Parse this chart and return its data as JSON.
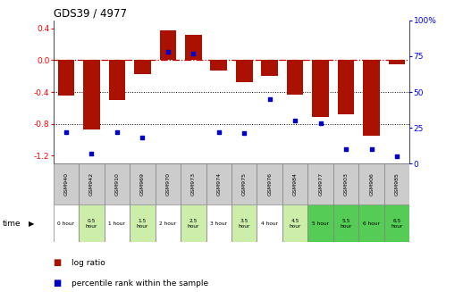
{
  "title": "GDS39 / 4977",
  "samples": [
    "GSM940",
    "GSM942",
    "GSM910",
    "GSM969",
    "GSM970",
    "GSM973",
    "GSM974",
    "GSM975",
    "GSM976",
    "GSM984",
    "GSM977",
    "GSM903",
    "GSM906",
    "GSM985"
  ],
  "time_labels": [
    "0 hour",
    "0.5\nhour",
    "1 hour",
    "1.5\nhour",
    "2 hour",
    "2.5\nhour",
    "3 hour",
    "3.5\nhour",
    "4 hour",
    "4.5\nhour",
    "5 hour",
    "5.5\nhour",
    "6 hour",
    "6.5\nhour"
  ],
  "log_ratio": [
    -0.45,
    -0.87,
    -0.5,
    -0.17,
    0.38,
    0.32,
    -0.13,
    -0.28,
    -0.2,
    -0.43,
    -0.72,
    -0.68,
    -0.95,
    -0.05
  ],
  "percentile": [
    22,
    7,
    22,
    18,
    78,
    77,
    22,
    21,
    45,
    30,
    28,
    10,
    10,
    5
  ],
  "time_bg": [
    "white",
    "light",
    "white",
    "light",
    "white",
    "light",
    "white",
    "light",
    "white",
    "light",
    "green",
    "green",
    "green",
    "green"
  ],
  "ylim_left": [
    -1.3,
    0.5
  ],
  "ylim_right": [
    0,
    100
  ],
  "yticks_left": [
    -1.2,
    -0.8,
    -0.4,
    0.0,
    0.4
  ],
  "yticks_right": [
    0,
    25,
    50,
    75,
    100
  ],
  "bar_color": "#aa1100",
  "dot_color": "#0000cc",
  "dashed_line_color": "#cc0000",
  "header_bg": "#cccccc",
  "time_bg_white": "#ffffff",
  "time_bg_light": "#cceeaa",
  "time_bg_green": "#55cc55"
}
